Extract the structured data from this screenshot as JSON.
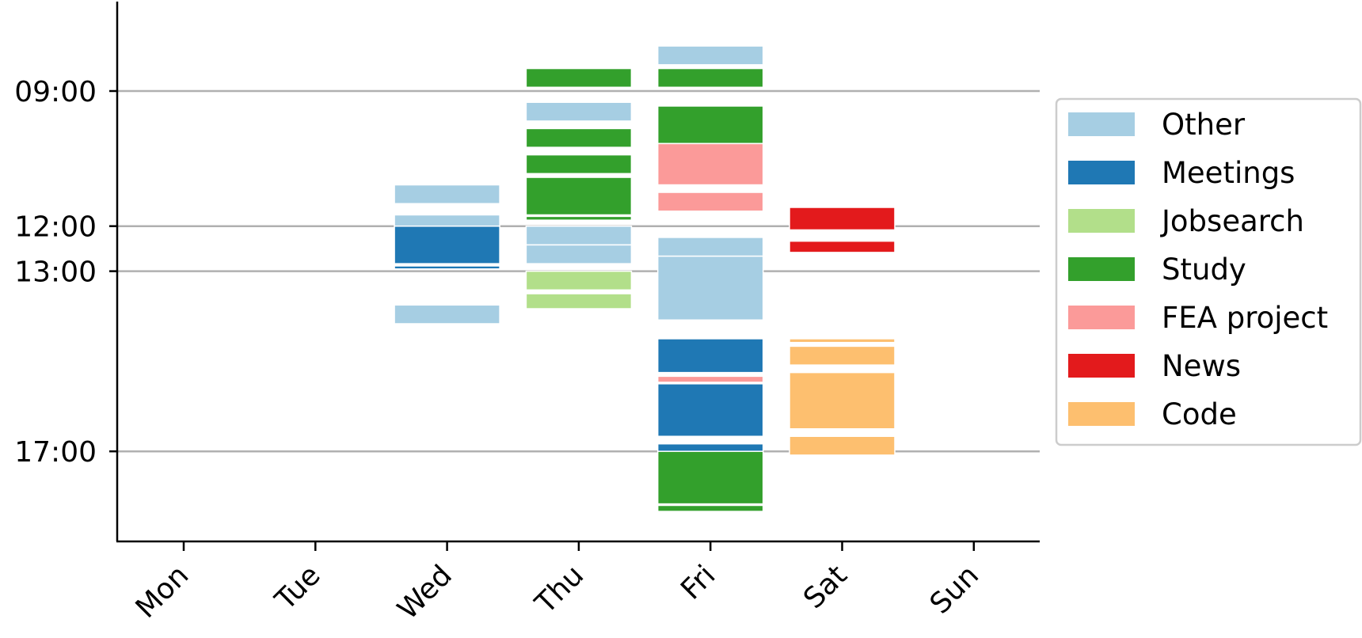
{
  "chart_data": {
    "type": "bar",
    "title": "",
    "xlabel": "",
    "ylabel": "",
    "categories": [
      "Mon",
      "Tue",
      "Wed",
      "Thu",
      "Fri",
      "Sat",
      "Sun"
    ],
    "y_axis": {
      "inverted": true,
      "range": [
        "07:00",
        "19:00"
      ],
      "ticks": [
        "09:00",
        "12:00",
        "13:00",
        "17:00"
      ],
      "grid": "horizontal at tick positions"
    },
    "legend": {
      "placement": "right",
      "entries": [
        {
          "name": "Other",
          "color": "#a6cee3"
        },
        {
          "name": "Meetings",
          "color": "#1f78b4"
        },
        {
          "name": "Jobsearch",
          "color": "#b2df8a"
        },
        {
          "name": "Study",
          "color": "#33a02c"
        },
        {
          "name": "FEA project",
          "color": "#fb9a99"
        },
        {
          "name": "News",
          "color": "#e31a1c"
        },
        {
          "name": "Code",
          "color": "#fdbf6f"
        }
      ]
    },
    "series": [
      {
        "name": "Other",
        "color": "#a6cee3",
        "blocks": [
          {
            "day": "Wed",
            "start": "11:05",
            "end": "11:30"
          },
          {
            "day": "Wed",
            "start": "11:45",
            "end": "12:00"
          },
          {
            "day": "Wed",
            "start": "13:45",
            "end": "14:10"
          },
          {
            "day": "Thu",
            "start": "9:15",
            "end": "9:40"
          },
          {
            "day": "Thu",
            "start": "12:00",
            "end": "12:25"
          },
          {
            "day": "Thu",
            "start": "12:25",
            "end": "12:50"
          },
          {
            "day": "Fri",
            "start": "8:00",
            "end": "8:25"
          },
          {
            "day": "Fri",
            "start": "12:15",
            "end": "12:40"
          },
          {
            "day": "Fri",
            "start": "12:40",
            "end": "14:05"
          }
        ]
      },
      {
        "name": "Meetings",
        "color": "#1f78b4",
        "blocks": [
          {
            "day": "Wed",
            "start": "12:00",
            "end": "12:50"
          },
          {
            "day": "Wed",
            "start": "12:53",
            "end": "12:57"
          },
          {
            "day": "Fri",
            "start": "14:30",
            "end": "15:15"
          },
          {
            "day": "Fri",
            "start": "15:30",
            "end": "16:40"
          },
          {
            "day": "Fri",
            "start": "16:50",
            "end": "17:00"
          }
        ]
      },
      {
        "name": "Jobsearch",
        "color": "#b2df8a",
        "blocks": [
          {
            "day": "Thu",
            "start": "13:00",
            "end": "13:25"
          },
          {
            "day": "Thu",
            "start": "13:30",
            "end": "13:50"
          }
        ]
      },
      {
        "name": "Study",
        "color": "#33a02c",
        "blocks": [
          {
            "day": "Thu",
            "start": "8:30",
            "end": "8:55"
          },
          {
            "day": "Thu",
            "start": "9:50",
            "end": "10:15"
          },
          {
            "day": "Thu",
            "start": "10:25",
            "end": "10:50"
          },
          {
            "day": "Thu",
            "start": "10:55",
            "end": "11:45"
          },
          {
            "day": "Thu",
            "start": "11:47",
            "end": "11:52"
          },
          {
            "day": "Fri",
            "start": "8:30",
            "end": "8:55"
          },
          {
            "day": "Fri",
            "start": "9:20",
            "end": "10:10"
          },
          {
            "day": "Fri",
            "start": "17:00",
            "end": "18:10"
          },
          {
            "day": "Fri",
            "start": "18:12",
            "end": "18:20"
          }
        ]
      },
      {
        "name": "FEA project",
        "color": "#fb9a99",
        "blocks": [
          {
            "day": "Fri",
            "start": "10:10",
            "end": "11:05"
          },
          {
            "day": "Fri",
            "start": "11:15",
            "end": "11:40"
          },
          {
            "day": "Fri",
            "start": "15:20",
            "end": "15:28"
          }
        ]
      },
      {
        "name": "News",
        "color": "#e31a1c",
        "blocks": [
          {
            "day": "Sat",
            "start": "11:35",
            "end": "12:05"
          },
          {
            "day": "Sat",
            "start": "12:20",
            "end": "12:35"
          }
        ]
      },
      {
        "name": "Code",
        "color": "#fdbf6f",
        "blocks": [
          {
            "day": "Sat",
            "start": "14:30",
            "end": "14:35"
          },
          {
            "day": "Sat",
            "start": "14:40",
            "end": "15:05"
          },
          {
            "day": "Sat",
            "start": "15:15",
            "end": "16:30"
          },
          {
            "day": "Sat",
            "start": "16:40",
            "end": "17:05"
          }
        ]
      }
    ]
  }
}
